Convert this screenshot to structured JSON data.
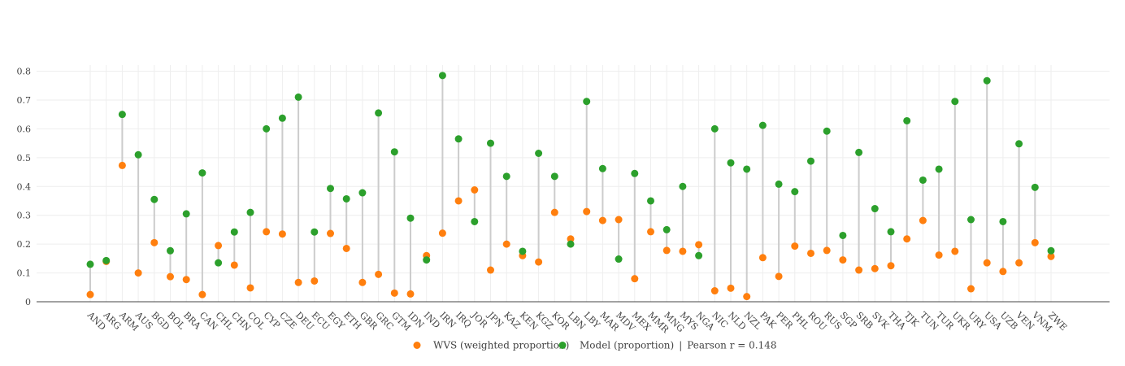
{
  "chart_data": {
    "type": "scatter",
    "title": "",
    "xlabel": "",
    "ylabel": "",
    "ylim": [
      0,
      0.82
    ],
    "yticks": [
      0,
      0.1,
      0.2,
      0.3,
      0.4,
      0.5,
      0.6,
      0.7,
      0.8
    ],
    "grid": true,
    "legend_position": "bottom",
    "categories": [
      "AND",
      "ARG",
      "ARM",
      "AUS",
      "BGD",
      "BOL",
      "BRA",
      "CAN",
      "CHL",
      "CHN",
      "COL",
      "CYP",
      "CZE",
      "DEU",
      "ECU",
      "EGY",
      "ETH",
      "GBR",
      "GRC",
      "GTM",
      "IDN",
      "IND",
      "IRN",
      "IRQ",
      "JOR",
      "JPN",
      "KAZ",
      "KEN",
      "KGZ",
      "KOR",
      "LBN",
      "LBY",
      "MAR",
      "MDV",
      "MEX",
      "MMR",
      "MNG",
      "MYS",
      "NGA",
      "NIC",
      "NLD",
      "NZL",
      "PAK",
      "PER",
      "PHL",
      "ROU",
      "RUS",
      "SGP",
      "SRB",
      "SVK",
      "THA",
      "TJK",
      "TUN",
      "TUR",
      "UKR",
      "URY",
      "USA",
      "UZB",
      "VEN",
      "VNM",
      "ZWE"
    ],
    "series": [
      {
        "name": "WVS (weighted proportion)",
        "color": "#ff7f0e",
        "values": [
          0.025,
          0.14,
          0.473,
          0.1,
          0.205,
          0.087,
          0.077,
          0.025,
          0.195,
          0.127,
          0.048,
          0.243,
          0.235,
          0.067,
          0.072,
          0.237,
          0.185,
          0.067,
          0.095,
          0.03,
          0.027,
          0.16,
          0.238,
          0.35,
          0.388,
          0.11,
          0.2,
          0.16,
          0.138,
          0.31,
          0.218,
          0.313,
          0.282,
          0.285,
          0.08,
          0.243,
          0.178,
          0.175,
          0.198,
          0.038,
          0.047,
          0.018,
          0.153,
          0.088,
          0.193,
          0.168,
          0.178,
          0.145,
          0.11,
          0.115,
          0.125,
          0.218,
          0.282,
          0.162,
          0.175,
          0.045,
          0.135,
          0.105,
          0.135,
          0.205,
          0.157
        ]
      },
      {
        "name": "Model (proportion)",
        "color": "#2ca02c",
        "values": [
          0.13,
          0.143,
          0.65,
          0.51,
          0.355,
          0.177,
          0.305,
          0.447,
          0.135,
          0.242,
          0.31,
          0.6,
          0.637,
          0.71,
          0.242,
          0.393,
          0.357,
          0.378,
          0.655,
          0.52,
          0.29,
          0.145,
          0.785,
          0.565,
          0.278,
          0.55,
          0.435,
          0.175,
          0.515,
          0.435,
          0.2,
          0.695,
          0.462,
          0.148,
          0.445,
          0.35,
          0.25,
          0.4,
          0.16,
          0.6,
          0.482,
          0.46,
          0.612,
          0.408,
          0.382,
          0.488,
          0.592,
          0.23,
          0.518,
          0.323,
          0.243,
          0.628,
          0.422,
          0.46,
          0.695,
          0.285,
          0.767,
          0.278,
          0.548,
          0.397,
          0.177
        ]
      }
    ],
    "annotation": "Pearson r = 0.148",
    "legend_separator": "|"
  }
}
